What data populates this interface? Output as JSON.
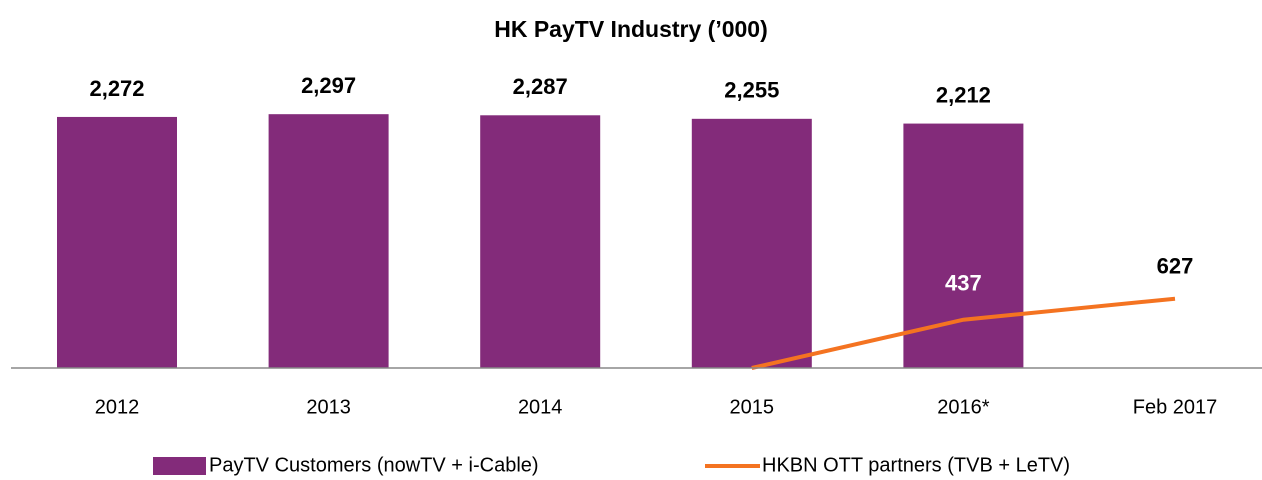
{
  "chart_data": {
    "type": "bar",
    "title": "HK PayTV Industry (’000)",
    "categories": [
      "2012",
      "2013",
      "2014",
      "2015",
      "2016*",
      "Feb 2017"
    ],
    "series": [
      {
        "name": "PayTV Customers (nowTV + i-Cable)",
        "type": "bar",
        "color": "#832b7a",
        "values": [
          2272,
          2297,
          2287,
          2255,
          2212,
          null
        ],
        "value_labels": [
          "2,272",
          "2,297",
          "2,287",
          "2,255",
          "2,212",
          null
        ]
      },
      {
        "name": "HKBN OTT partners (TVB + LeTV)",
        "type": "line",
        "color": "#f47321",
        "values": [
          null,
          null,
          null,
          0,
          437,
          627
        ],
        "value_labels": [
          null,
          null,
          null,
          null,
          "437",
          "627"
        ]
      }
    ],
    "ylim": [
      0,
      3000
    ],
    "legend": "bottom"
  }
}
